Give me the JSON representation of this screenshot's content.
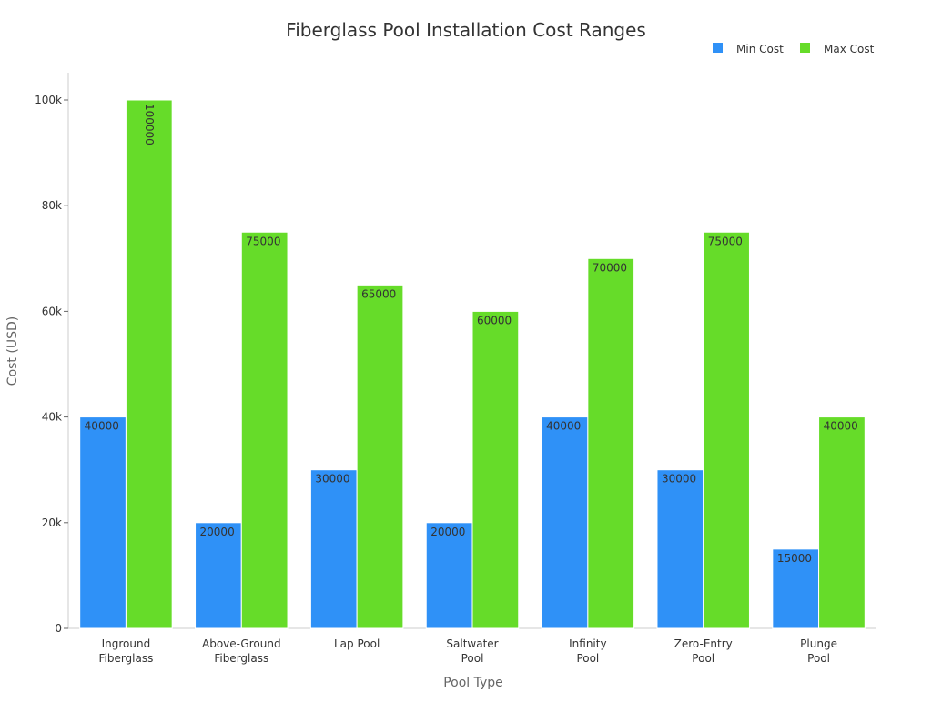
{
  "chart_data": {
    "type": "bar",
    "title": "Fiberglass Pool Installation Cost Ranges",
    "xlabel": "Pool Type",
    "ylabel": "Cost (USD)",
    "categories": [
      [
        "Inground",
        "Fiberglass"
      ],
      [
        "Above-Ground",
        "Fiberglass"
      ],
      [
        "Lap Pool"
      ],
      [
        "Saltwater",
        "Pool"
      ],
      [
        "Infinity",
        "Pool"
      ],
      [
        "Zero-Entry",
        "Pool"
      ],
      [
        "Plunge",
        "Pool"
      ]
    ],
    "series": [
      {
        "name": "Min Cost",
        "color": "#2f91f7",
        "values": [
          40000,
          20000,
          30000,
          20000,
          40000,
          30000,
          15000
        ]
      },
      {
        "name": "Max Cost",
        "color": "#66dc29",
        "values": [
          100000,
          75000,
          65000,
          60000,
          70000,
          75000,
          40000
        ]
      }
    ],
    "ylim": [
      0,
      100000
    ],
    "yticks": [
      0,
      20000,
      40000,
      60000,
      80000,
      100000
    ],
    "ytick_labels": [
      "0",
      "20k",
      "40k",
      "60k",
      "80k",
      "100k"
    ],
    "grid": false,
    "legend": "top-right",
    "data_labels": true
  }
}
